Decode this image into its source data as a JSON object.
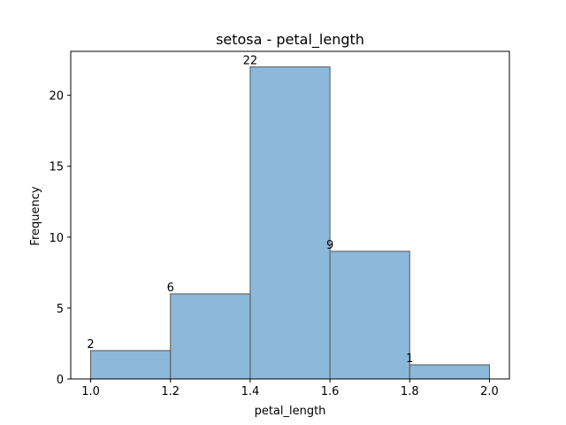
{
  "chart_data": {
    "type": "bar",
    "title": "setosa - petal_length",
    "xlabel": "petal_length",
    "ylabel": "Frequency",
    "bins": [
      {
        "x0": 1.0,
        "x1": 1.2,
        "count": 2
      },
      {
        "x0": 1.2,
        "x1": 1.4,
        "count": 6
      },
      {
        "x0": 1.4,
        "x1": 1.6,
        "count": 22
      },
      {
        "x0": 1.6,
        "x1": 1.8,
        "count": 9
      },
      {
        "x0": 1.8,
        "x1": 2.0,
        "count": 1
      }
    ],
    "xlim": [
      0.95,
      2.05
    ],
    "ylim": [
      0,
      23.1
    ],
    "xticks": [
      1.0,
      1.2,
      1.4,
      1.6,
      1.8,
      2.0
    ],
    "xtick_labels": [
      "1.0",
      "1.2",
      "1.4",
      "1.6",
      "1.8",
      "2.0"
    ],
    "yticks": [
      0,
      5,
      10,
      15,
      20
    ],
    "ytick_labels": [
      "0",
      "5",
      "10",
      "15",
      "20"
    ],
    "bar_color": "#8cb9da",
    "edge_color": "#555555",
    "grid": false,
    "legend": "none"
  }
}
